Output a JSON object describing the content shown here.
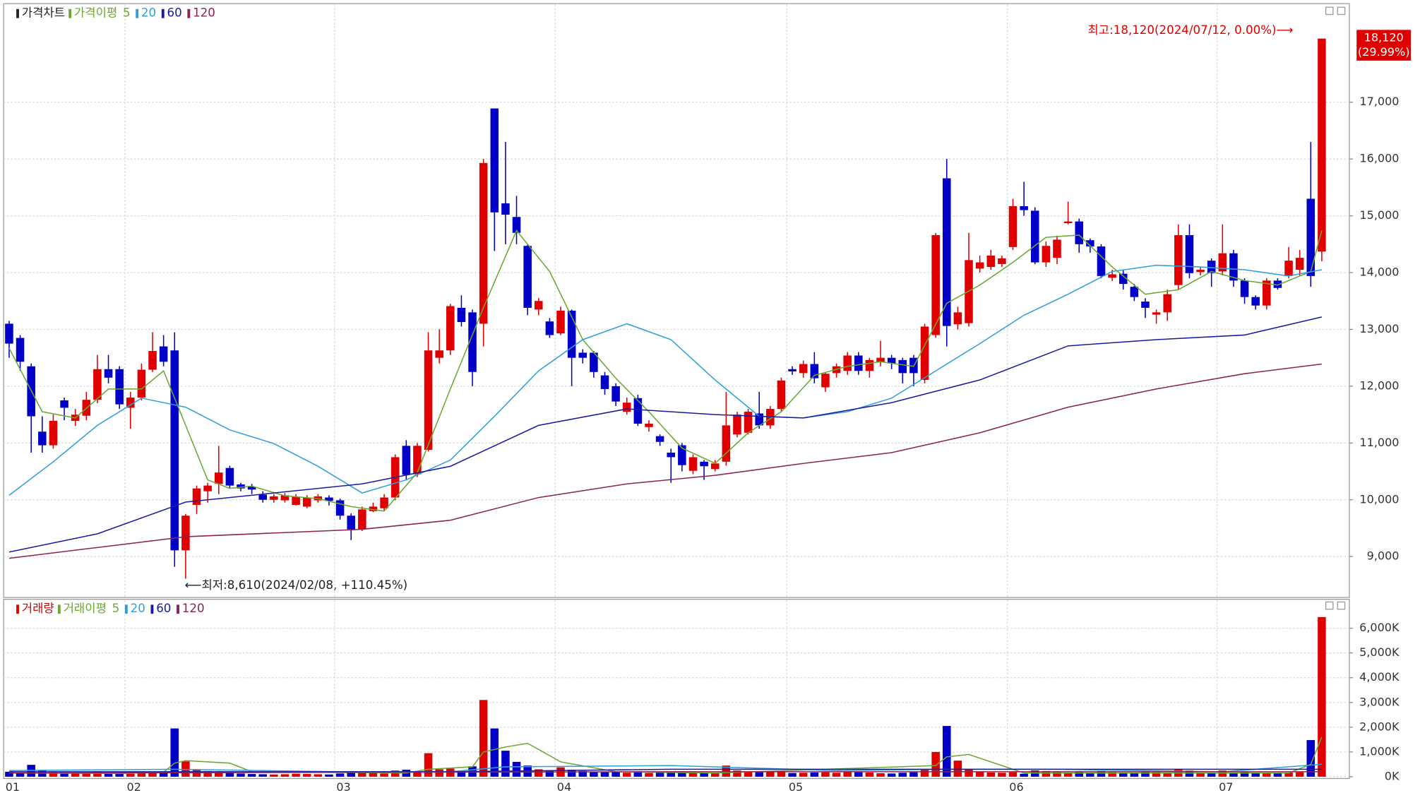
{
  "chart_data": {
    "type": "candlestick",
    "price": {
      "legend_title": "가격차트",
      "ma_title": "가격이평",
      "open": [
        13100,
        12850,
        12350,
        11200,
        10960,
        11750,
        11390,
        11480,
        11760,
        12300,
        12300,
        11620,
        11800,
        12290,
        12700,
        12630,
        9110,
        9910,
        10150,
        10280,
        10560,
        10270,
        10230,
        10090,
        10000,
        9990,
        9910,
        9880,
        9990,
        10040,
        9990,
        9720,
        9480,
        9800,
        9850,
        10040,
        10950,
        10450,
        10880,
        12500,
        12630,
        13380,
        13300,
        13100,
        16890,
        15220,
        14980,
        14470,
        13350,
        13140,
        12930,
        13330,
        12590,
        12590,
        12190,
        12000,
        11550,
        11790,
        11280,
        11120,
        10830,
        10960,
        10510,
        10670,
        10540,
        10670,
        11150,
        11180,
        11520,
        11310,
        11600,
        12300,
        12230,
        12390,
        11980,
        12230,
        12270,
        12540,
        12270,
        12420,
        12500,
        12460,
        12500,
        12110,
        12900,
        15660,
        13090,
        13110,
        14070,
        14100,
        14150,
        14450,
        15170,
        15090,
        14180,
        14260,
        14870,
        14900,
        14570,
        14460,
        13910,
        13980,
        13750,
        13490,
        13260,
        13300,
        13780,
        14660,
        14010,
        14210,
        14020,
        14340,
        13860,
        13570,
        13420,
        13860,
        13940,
        14050,
        15300,
        14370
      ],
      "high": [
        13150,
        12900,
        12400,
        11470,
        11500,
        11800,
        11600,
        11900,
        12550,
        12550,
        12350,
        11900,
        12400,
        12950,
        12900,
        12950,
        9750,
        10250,
        10300,
        10950,
        10600,
        10300,
        10280,
        10150,
        10100,
        10120,
        10100,
        10080,
        10100,
        10080,
        10020,
        9760,
        9880,
        9950,
        10100,
        10800,
        11050,
        11000,
        12950,
        13000,
        13450,
        13600,
        13350,
        16000,
        16890,
        16300,
        15350,
        14500,
        13550,
        13200,
        13400,
        13350,
        12650,
        12620,
        12250,
        12050,
        11800,
        11850,
        11400,
        11150,
        10900,
        11000,
        10800,
        10700,
        10700,
        11900,
        11550,
        11600,
        11900,
        11650,
        12150,
        12350,
        12450,
        12600,
        12250,
        12400,
        12600,
        12600,
        12500,
        12800,
        12550,
        12500,
        12550,
        13100,
        14700,
        16000,
        13400,
        14700,
        14300,
        14400,
        14300,
        15300,
        15600,
        15150,
        14550,
        14650,
        15250,
        14950,
        14600,
        14500,
        14050,
        14050,
        13800,
        13550,
        13350,
        13700,
        14850,
        14850,
        14100,
        14250,
        14850,
        14400,
        13900,
        13600,
        13900,
        13900,
        14450,
        14400,
        16300,
        18120
      ],
      "low": [
        12500,
        12270,
        10830,
        10830,
        10900,
        11400,
        11300,
        11400,
        11700,
        12050,
        11600,
        11250,
        11750,
        12250,
        12350,
        8820,
        8610,
        9750,
        9950,
        10100,
        10200,
        10150,
        10100,
        9950,
        9950,
        9950,
        9900,
        9850,
        9950,
        9900,
        9650,
        9290,
        9450,
        9780,
        9800,
        9990,
        10350,
        10400,
        10850,
        12400,
        12550,
        13050,
        12000,
        12700,
        14380,
        14500,
        14500,
        13250,
        13250,
        12850,
        12900,
        12000,
        12400,
        12150,
        11850,
        11650,
        11500,
        11300,
        11200,
        10950,
        10300,
        10500,
        10450,
        10350,
        10500,
        10600,
        11100,
        11150,
        11250,
        11250,
        11550,
        12200,
        12150,
        12050,
        11900,
        12150,
        12200,
        12200,
        12150,
        12350,
        12300,
        12050,
        12000,
        12050,
        12850,
        12700,
        13000,
        13050,
        14000,
        14050,
        14100,
        14400,
        15000,
        14150,
        14100,
        14150,
        14850,
        14350,
        14350,
        13900,
        13850,
        13700,
        13500,
        13200,
        13100,
        13150,
        13700,
        13900,
        13950,
        13750,
        13950,
        13750,
        13450,
        13350,
        13350,
        13700,
        13900,
        13950,
        13750,
        14200
      ],
      "close": [
        12750,
        12430,
        11470,
        10960,
        11390,
        11620,
        11500,
        11760,
        12300,
        12150,
        11680,
        11800,
        12290,
        12620,
        12430,
        9110,
        9720,
        10200,
        10250,
        10480,
        10250,
        10200,
        10180,
        10000,
        10060,
        10080,
        10050,
        10040,
        10060,
        9980,
        9720,
        9480,
        9830,
        9880,
        10040,
        10750,
        10440,
        10950,
        12630,
        12630,
        13410,
        13130,
        12250,
        15930,
        15060,
        15020,
        14700,
        13380,
        13500,
        12900,
        13330,
        12500,
        12500,
        12250,
        11950,
        11730,
        11710,
        11340,
        11340,
        11020,
        10750,
        10610,
        10750,
        10590,
        10640,
        11310,
        11500,
        11550,
        11310,
        11600,
        12100,
        12260,
        12390,
        12140,
        12220,
        12350,
        12540,
        12270,
        12460,
        12500,
        12400,
        12230,
        12230,
        13050,
        14660,
        13060,
        13300,
        14220,
        14180,
        14300,
        14250,
        15170,
        15100,
        14180,
        14470,
        14580,
        14900,
        14500,
        14460,
        13940,
        13970,
        13800,
        13570,
        13380,
        13300,
        13620,
        14660,
        13990,
        14050,
        13990,
        14340,
        13860,
        13570,
        13420,
        13860,
        13730,
        14210,
        14260,
        13940,
        18120
      ],
      "up_color": "#e00000",
      "down_color": "#0000c8",
      "series": [
        {
          "name": "5",
          "color": "#6aa832",
          "x": [
            0,
            3,
            6,
            9,
            12,
            14,
            16,
            18,
            20,
            22,
            25,
            28,
            31,
            34,
            37,
            40,
            43,
            46,
            49,
            52,
            55,
            58,
            61,
            64,
            67,
            70,
            73,
            76,
            79,
            82,
            85,
            88,
            91,
            94,
            97,
            100,
            103,
            106,
            109,
            112,
            115,
            118,
            119
          ],
          "values": [
            12670,
            11550,
            11440,
            11950,
            11950,
            12270,
            11310,
            10350,
            10200,
            10240,
            10070,
            10020,
            9880,
            9800,
            10480,
            11950,
            13380,
            14740,
            14020,
            12820,
            12140,
            11550,
            10910,
            10640,
            11180,
            11550,
            12190,
            12350,
            12430,
            12350,
            13460,
            13780,
            14180,
            14620,
            14660,
            14100,
            13620,
            13700,
            14020,
            13860,
            13780,
            14020,
            14740
          ]
        },
        {
          "name": "20",
          "color": "#2e9fdc",
          "x": [
            0,
            4,
            8,
            12,
            16,
            20,
            24,
            28,
            32,
            36,
            40,
            44,
            48,
            52,
            56,
            60,
            64,
            68,
            72,
            76,
            80,
            84,
            88,
            92,
            96,
            100,
            104,
            108,
            112,
            116,
            119
          ],
          "values": [
            10080,
            10670,
            11310,
            11790,
            11630,
            11230,
            10990,
            10590,
            10120,
            10350,
            10700,
            11470,
            12270,
            12820,
            13100,
            12820,
            12110,
            11470,
            11440,
            11550,
            11790,
            12270,
            12750,
            13250,
            13620,
            14020,
            14130,
            14100,
            14050,
            13940,
            14050
          ]
        },
        {
          "name": "60",
          "color": "#1a1aa0",
          "x": [
            0,
            8,
            16,
            24,
            32,
            40,
            48,
            56,
            64,
            72,
            80,
            88,
            96,
            104,
            112,
            119
          ],
          "values": [
            9080,
            9400,
            9960,
            10120,
            10280,
            10590,
            11310,
            11600,
            11500,
            11440,
            11710,
            12110,
            12710,
            12820,
            12900,
            13220
          ]
        },
        {
          "name": "120",
          "color": "#8b2252",
          "x": [
            0,
            8,
            16,
            32,
            40,
            48,
            56,
            64,
            72,
            80,
            88,
            96,
            104,
            112,
            119
          ],
          "values": [
            8970,
            9160,
            9350,
            9480,
            9640,
            10040,
            10280,
            10430,
            10640,
            10830,
            11180,
            11630,
            11950,
            12220,
            12390
          ]
        }
      ],
      "ylim": [
        8280,
        18720
      ],
      "yticks": [
        {
          "value": 9000,
          "label": "9,000"
        },
        {
          "value": 10000,
          "label": "10,000"
        },
        {
          "value": 11000,
          "label": "11,000"
        },
        {
          "value": 12000,
          "label": "12,000"
        },
        {
          "value": 13000,
          "label": "13,000"
        },
        {
          "value": 14000,
          "label": "14,000"
        },
        {
          "value": 15000,
          "label": "15,000"
        },
        {
          "value": 16000,
          "label": "16,000"
        },
        {
          "value": 17000,
          "label": "17,000"
        }
      ],
      "high_annotation": "최고:18,120(2024/07/12, 0.00%)⟶",
      "low_annotation": "⟵최저:8,610(2024/02/08, +110.45%)",
      "last_price_label": "18,120",
      "last_change_label": "(29.99%)"
    },
    "volume": {
      "legend_title": "거래량",
      "ma_title": "거래이평",
      "values": [
        200,
        150,
        480,
        250,
        180,
        120,
        150,
        170,
        220,
        140,
        150,
        120,
        160,
        180,
        200,
        1950,
        620,
        280,
        230,
        220,
        180,
        130,
        110,
        100,
        90,
        100,
        120,
        110,
        100,
        90,
        130,
        200,
        180,
        150,
        130,
        250,
        280,
        200,
        950,
        300,
        330,
        250,
        420,
        3100,
        1950,
        1050,
        600,
        450,
        300,
        250,
        380,
        280,
        230,
        200,
        180,
        200,
        160,
        220,
        150,
        170,
        200,
        220,
        180,
        150,
        170,
        450,
        250,
        200,
        180,
        220,
        230,
        150,
        160,
        170,
        180,
        160,
        200,
        180,
        170,
        140,
        130,
        160,
        180,
        300,
        1000,
        2050,
        650,
        300,
        200,
        170,
        160,
        180,
        120,
        250,
        230,
        200,
        170,
        190,
        160,
        230,
        180,
        150,
        150,
        200,
        180,
        160,
        300,
        250,
        140,
        160,
        250,
        170,
        190,
        160,
        140,
        150,
        170,
        180,
        1480,
        6450
      ],
      "series": [
        {
          "name": "5",
          "color": "#6aa832",
          "x": [
            0,
            10,
            14,
            15,
            16,
            20,
            22,
            36,
            38,
            42,
            43,
            45,
            47,
            50,
            55,
            64,
            84,
            85,
            87,
            90,
            92,
            116,
            118,
            119
          ],
          "values": [
            150,
            130,
            180,
            550,
            650,
            550,
            200,
            150,
            300,
            400,
            1000,
            1200,
            1350,
            600,
            200,
            150,
            450,
            800,
            900,
            450,
            150,
            150,
            500,
            1600
          ]
        },
        {
          "name": "20",
          "color": "#2e9fdc",
          "x": [
            0,
            15,
            30,
            40,
            45,
            60,
            75,
            85,
            95,
            110,
            119
          ],
          "values": [
            250,
            300,
            200,
            200,
            400,
            450,
            250,
            300,
            300,
            200,
            500
          ]
        },
        {
          "name": "60",
          "color": "#1a1aa0",
          "x": [
            0,
            40,
            60,
            119
          ],
          "values": [
            200,
            200,
            300,
            300
          ]
        },
        {
          "name": "120",
          "color": "#8b2252",
          "x": [
            0,
            60,
            119
          ],
          "values": [
            150,
            200,
            200
          ]
        }
      ],
      "ylim": [
        0,
        6950
      ],
      "yticks": [
        {
          "value": 0,
          "label": "0K"
        },
        {
          "value": 1000,
          "label": "1,000K"
        },
        {
          "value": 2000,
          "label": "2,000K"
        },
        {
          "value": 3000,
          "label": "3,000K"
        },
        {
          "value": 4000,
          "label": "4,000K"
        },
        {
          "value": 5000,
          "label": "5,000K"
        },
        {
          "value": 6000,
          "label": "6,000K"
        }
      ]
    },
    "xlim": [
      -0.5,
      121.5
    ],
    "month_labels": {
      "x": [
        0,
        10.5,
        29.5,
        49.5,
        70.5,
        90.5,
        109.5
      ],
      "labels": [
        "01",
        "02",
        "03",
        "04",
        "05",
        "06",
        "07"
      ]
    }
  }
}
